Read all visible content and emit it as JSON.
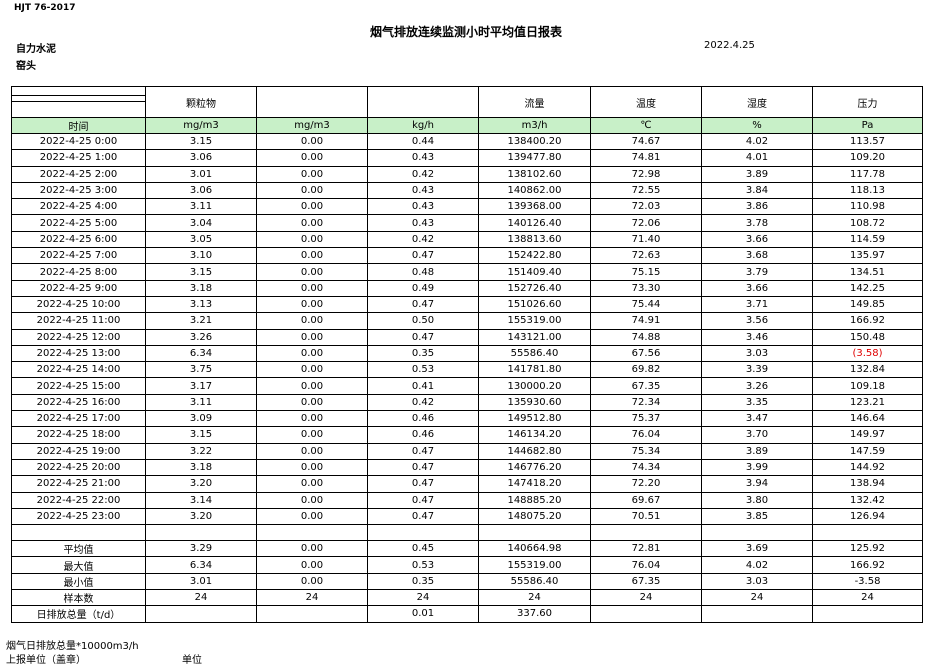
{
  "header": {
    "standard": "HJT  76-2017",
    "title": "烟气排放连续监测小时平均值日报表",
    "company": "自力水泥",
    "date": "2022.4.25",
    "location": "窑头"
  },
  "table": {
    "columns": [
      null,
      "颗粒物",
      null,
      null,
      "流量",
      "温度",
      "湿度",
      "压力"
    ],
    "units": [
      "时间",
      "mg/m3",
      "mg/m3",
      "kg/h",
      "m3/h",
      "℃",
      "%",
      "Pa"
    ],
    "rows": [
      [
        "2022-4-25 0:00",
        "3.15",
        "0.00",
        "0.44",
        "138400.20",
        "74.67",
        "4.02",
        "113.57"
      ],
      [
        "2022-4-25 1:00",
        "3.06",
        "0.00",
        "0.43",
        "139477.80",
        "74.81",
        "4.01",
        "109.20"
      ],
      [
        "2022-4-25 2:00",
        "3.01",
        "0.00",
        "0.42",
        "138102.60",
        "72.98",
        "3.89",
        "117.78"
      ],
      [
        "2022-4-25 3:00",
        "3.06",
        "0.00",
        "0.43",
        "140862.00",
        "72.55",
        "3.84",
        "118.13"
      ],
      [
        "2022-4-25 4:00",
        "3.11",
        "0.00",
        "0.43",
        "139368.00",
        "72.03",
        "3.86",
        "110.98"
      ],
      [
        "2022-4-25 5:00",
        "3.04",
        "0.00",
        "0.43",
        "140126.40",
        "72.06",
        "3.78",
        "108.72"
      ],
      [
        "2022-4-25 6:00",
        "3.05",
        "0.00",
        "0.42",
        "138813.60",
        "71.40",
        "3.66",
        "114.59"
      ],
      [
        "2022-4-25 7:00",
        "3.10",
        "0.00",
        "0.47",
        "152422.80",
        "72.63",
        "3.68",
        "135.97"
      ],
      [
        "2022-4-25 8:00",
        "3.15",
        "0.00",
        "0.48",
        "151409.40",
        "75.15",
        "3.79",
        "134.51"
      ],
      [
        "2022-4-25 9:00",
        "3.18",
        "0.00",
        "0.49",
        "152726.40",
        "73.30",
        "3.66",
        "142.25"
      ],
      [
        "2022-4-25 10:00",
        "3.13",
        "0.00",
        "0.47",
        "151026.60",
        "75.44",
        "3.71",
        "149.85"
      ],
      [
        "2022-4-25 11:00",
        "3.21",
        "0.00",
        "0.50",
        "155319.00",
        "74.91",
        "3.56",
        "166.92"
      ],
      [
        "2022-4-25 12:00",
        "3.26",
        "0.00",
        "0.47",
        "143121.00",
        "74.88",
        "3.46",
        "150.48"
      ],
      [
        "2022-4-25 13:00",
        "6.34",
        "0.00",
        "0.35",
        "55586.40",
        "67.56",
        "3.03",
        "(3.58)"
      ],
      [
        "2022-4-25 14:00",
        "3.75",
        "0.00",
        "0.53",
        "141781.80",
        "69.82",
        "3.39",
        "132.84"
      ],
      [
        "2022-4-25 15:00",
        "3.17",
        "0.00",
        "0.41",
        "130000.20",
        "67.35",
        "3.26",
        "109.18"
      ],
      [
        "2022-4-25 16:00",
        "3.11",
        "0.00",
        "0.42",
        "135930.60",
        "72.34",
        "3.35",
        "123.21"
      ],
      [
        "2022-4-25 17:00",
        "3.09",
        "0.00",
        "0.46",
        "149512.80",
        "75.37",
        "3.47",
        "146.64"
      ],
      [
        "2022-4-25 18:00",
        "3.15",
        "0.00",
        "0.46",
        "146134.20",
        "76.04",
        "3.70",
        "149.97"
      ],
      [
        "2022-4-25 19:00",
        "3.22",
        "0.00",
        "0.47",
        "144682.80",
        "75.34",
        "3.89",
        "147.59"
      ],
      [
        "2022-4-25 20:00",
        "3.18",
        "0.00",
        "0.47",
        "146776.20",
        "74.34",
        "3.99",
        "144.92"
      ],
      [
        "2022-4-25 21:00",
        "3.20",
        "0.00",
        "0.47",
        "147418.20",
        "72.20",
        "3.94",
        "138.94"
      ],
      [
        "2022-4-25 22:00",
        "3.14",
        "0.00",
        "0.47",
        "148885.20",
        "69.67",
        "3.80",
        "132.42"
      ],
      [
        "2022-4-25 23:00",
        "3.20",
        "0.00",
        "0.47",
        "148075.20",
        "70.51",
        "3.85",
        "126.94"
      ]
    ],
    "summary": [
      [
        "平均值",
        "3.29",
        "0.00",
        "0.45",
        "140664.98",
        "72.81",
        "3.69",
        "125.92"
      ],
      [
        "最大值",
        "6.34",
        "0.00",
        "0.53",
        "155319.00",
        "76.04",
        "4.02",
        "166.92"
      ],
      [
        "最小值",
        "3.01",
        "0.00",
        "0.35",
        "55586.40",
        "67.35",
        "3.03",
        "-3.58"
      ],
      [
        "样本数",
        "24",
        "24",
        "24",
        "24",
        "24",
        "24",
        "24"
      ],
      [
        "日排放总量（t/d）",
        null,
        null,
        "0.01",
        "337.60",
        null,
        null,
        null
      ]
    ]
  },
  "footer": {
    "total_note": "烟气日排放总量*10000m3/h",
    "reporter": "上报单位（盖章）",
    "unit": "单位"
  }
}
